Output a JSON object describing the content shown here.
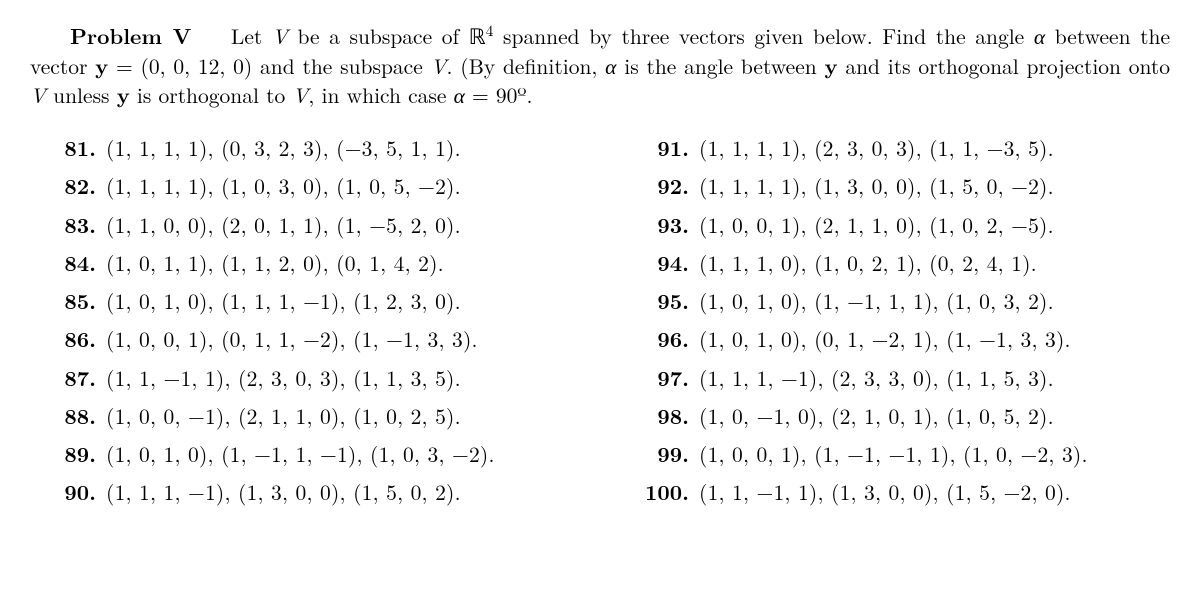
{
  "problem": {
    "title": "Problem V",
    "body_html": "Let <span class='it'>V</span> be a subspace of ℝ<sup>4</sup> spanned by three vectors given below. Find the angle <span class='it'>α</span> between the vector <span class='bf'>y</span> = (0, 0, 12, 0) and the subspace <span class='it'>V</span>. (By definition, <span class='it'>α</span> is the angle between <span class='bf'>y</span> and its orthogonal projection onto <span class='it'>V</span> unless <span class='bf'>y</span> is orthogonal to <span class='it'>V</span>, in which case <span class='it'>α</span> = 90º."
  },
  "left": [
    {
      "n": "81.",
      "v": "(1, 1, 1, 1),  (0, 3, 2, 3),  (−3, 5, 1, 1)."
    },
    {
      "n": "82.",
      "v": "(1, 1, 1, 1),  (1, 0, 3, 0),  (1, 0, 5, −2)."
    },
    {
      "n": "83.",
      "v": "(1, 1, 0, 0),  (2, 0, 1, 1),  (1, −5, 2, 0)."
    },
    {
      "n": "84.",
      "v": "(1, 0, 1, 1),  (1, 1, 2, 0),  (0, 1, 4, 2)."
    },
    {
      "n": "85.",
      "v": "(1, 0, 1, 0),  (1, 1, 1, −1),  (1, 2, 3, 0)."
    },
    {
      "n": "86.",
      "v": "(1, 0, 0, 1),  (0, 1, 1, −2),  (1, −1, 3, 3)."
    },
    {
      "n": "87.",
      "v": "(1, 1, −1, 1),  (2, 3, 0, 3),  (1, 1, 3, 5)."
    },
    {
      "n": "88.",
      "v": "(1, 0, 0, −1),  (2, 1, 1, 0),  (1, 0, 2, 5)."
    },
    {
      "n": "89.",
      "v": "(1, 0, 1, 0),  (1, −1, 1, −1),  (1, 0, 3, −2)."
    },
    {
      "n": "90.",
      "v": "(1, 1, 1, −1),  (1, 3, 0, 0),  (1, 5, 0, 2)."
    }
  ],
  "right": [
    {
      "n": "91.",
      "v": "(1, 1, 1, 1),  (2, 3, 0, 3),  (1, 1, −3, 5)."
    },
    {
      "n": "92.",
      "v": "(1, 1, 1, 1),  (1, 3, 0, 0),  (1, 5, 0, −2)."
    },
    {
      "n": "93.",
      "v": "(1, 0, 0, 1),  (2, 1, 1, 0),  (1, 0, 2, −5)."
    },
    {
      "n": "94.",
      "v": "(1, 1, 1, 0),  (1, 0, 2, 1),  (0, 2, 4, 1)."
    },
    {
      "n": "95.",
      "v": "(1, 0, 1, 0),  (1, −1, 1, 1),  (1, 0, 3, 2)."
    },
    {
      "n": "96.",
      "v": "(1, 0, 1, 0),  (0, 1, −2, 1),  (1, −1, 3, 3)."
    },
    {
      "n": "97.",
      "v": "(1, 1, 1, −1),  (2, 3, 3, 0),  (1, 1, 5, 3)."
    },
    {
      "n": "98.",
      "v": "(1, 0, −1, 0),  (2, 1, 0, 1),  (1, 0, 5, 2)."
    },
    {
      "n": "99.",
      "v": "(1, 0, 0, 1),  (1, −1, −1, 1),  (1, 0, −2, 3)."
    },
    {
      "n": "100.",
      "v": "(1, 1, −1, 1),  (1, 3, 0, 0),  (1, 5, −2, 0)."
    }
  ]
}
